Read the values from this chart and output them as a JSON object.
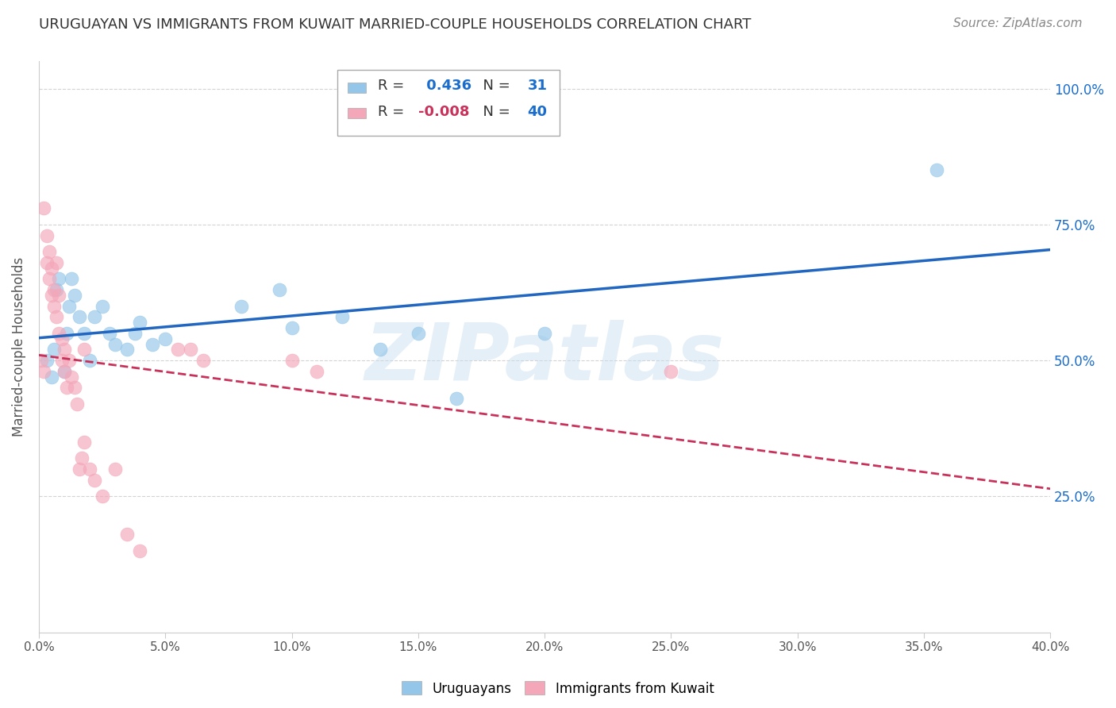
{
  "title": "URUGUAYAN VS IMMIGRANTS FROM KUWAIT MARRIED-COUPLE HOUSEHOLDS CORRELATION CHART",
  "source": "Source: ZipAtlas.com",
  "ylabel_label": "Married-couple Households",
  "xlim": [
    0.0,
    0.4
  ],
  "ylim": [
    0.0,
    1.05
  ],
  "xtick_labels": [
    "0.0%",
    "5.0%",
    "10.0%",
    "15.0%",
    "20.0%",
    "25.0%",
    "30.0%",
    "35.0%",
    "40.0%"
  ],
  "xtick_vals": [
    0.0,
    0.05,
    0.1,
    0.15,
    0.2,
    0.25,
    0.3,
    0.35,
    0.4
  ],
  "ytick_labels": [
    "25.0%",
    "50.0%",
    "75.0%",
    "100.0%"
  ],
  "ytick_vals": [
    0.25,
    0.5,
    0.75,
    1.0
  ],
  "R_blue": 0.436,
  "N_blue": 31,
  "R_pink": -0.008,
  "N_pink": 40,
  "blue_color": "#93c6e8",
  "pink_color": "#f4a7b9",
  "trendline_blue": "#2166c0",
  "trendline_pink": "#c8325a",
  "blue_x": [
    0.003,
    0.005,
    0.006,
    0.007,
    0.008,
    0.01,
    0.011,
    0.012,
    0.013,
    0.014,
    0.016,
    0.018,
    0.02,
    0.022,
    0.025,
    0.028,
    0.03,
    0.035,
    0.038,
    0.04,
    0.045,
    0.05,
    0.08,
    0.095,
    0.1,
    0.12,
    0.135,
    0.15,
    0.165,
    0.2,
    0.355
  ],
  "blue_y": [
    0.5,
    0.47,
    0.52,
    0.63,
    0.65,
    0.48,
    0.55,
    0.6,
    0.65,
    0.62,
    0.58,
    0.55,
    0.5,
    0.58,
    0.6,
    0.55,
    0.53,
    0.52,
    0.55,
    0.57,
    0.53,
    0.54,
    0.6,
    0.63,
    0.56,
    0.58,
    0.52,
    0.55,
    0.43,
    0.55,
    0.85
  ],
  "pink_x": [
    0.001,
    0.002,
    0.002,
    0.003,
    0.003,
    0.004,
    0.004,
    0.005,
    0.005,
    0.006,
    0.006,
    0.007,
    0.007,
    0.008,
    0.008,
    0.009,
    0.009,
    0.01,
    0.01,
    0.011,
    0.012,
    0.013,
    0.014,
    0.015,
    0.016,
    0.017,
    0.018,
    0.018,
    0.02,
    0.022,
    0.025,
    0.03,
    0.035,
    0.04,
    0.055,
    0.06,
    0.065,
    0.1,
    0.11,
    0.25
  ],
  "pink_y": [
    0.5,
    0.48,
    0.78,
    0.68,
    0.73,
    0.65,
    0.7,
    0.62,
    0.67,
    0.6,
    0.63,
    0.58,
    0.68,
    0.55,
    0.62,
    0.5,
    0.54,
    0.48,
    0.52,
    0.45,
    0.5,
    0.47,
    0.45,
    0.42,
    0.3,
    0.32,
    0.35,
    0.52,
    0.3,
    0.28,
    0.25,
    0.3,
    0.18,
    0.15,
    0.52,
    0.52,
    0.5,
    0.5,
    0.48,
    0.48
  ],
  "watermark": "ZIPatlas",
  "background_color": "#ffffff",
  "grid_color": "#c8c8c8"
}
